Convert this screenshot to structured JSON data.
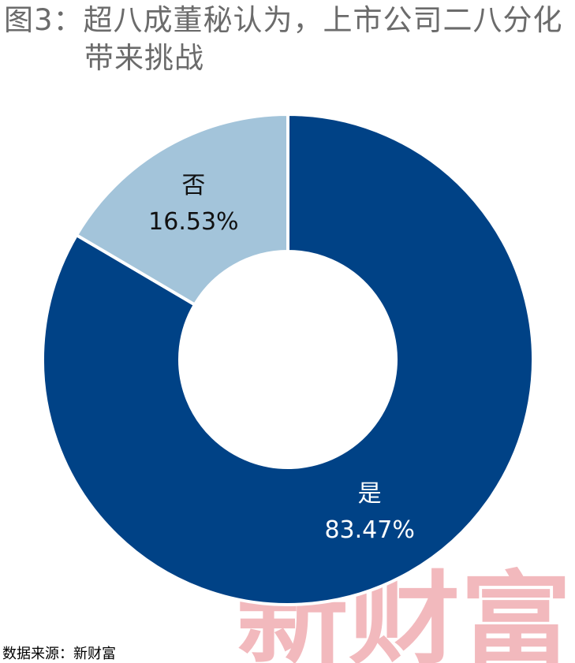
{
  "chart_data": {
    "type": "donut",
    "title": "图3：超八成董秘认为，上市公司二八分化带来挑战",
    "categories": [
      "是",
      "否"
    ],
    "values": [
      83.47,
      16.53
    ],
    "value_labels": [
      "83.47%",
      "16.53%"
    ],
    "colors": [
      "#004286",
      "#a3c4da"
    ],
    "source": "数据来源：新财富",
    "watermark": "新财富"
  }
}
